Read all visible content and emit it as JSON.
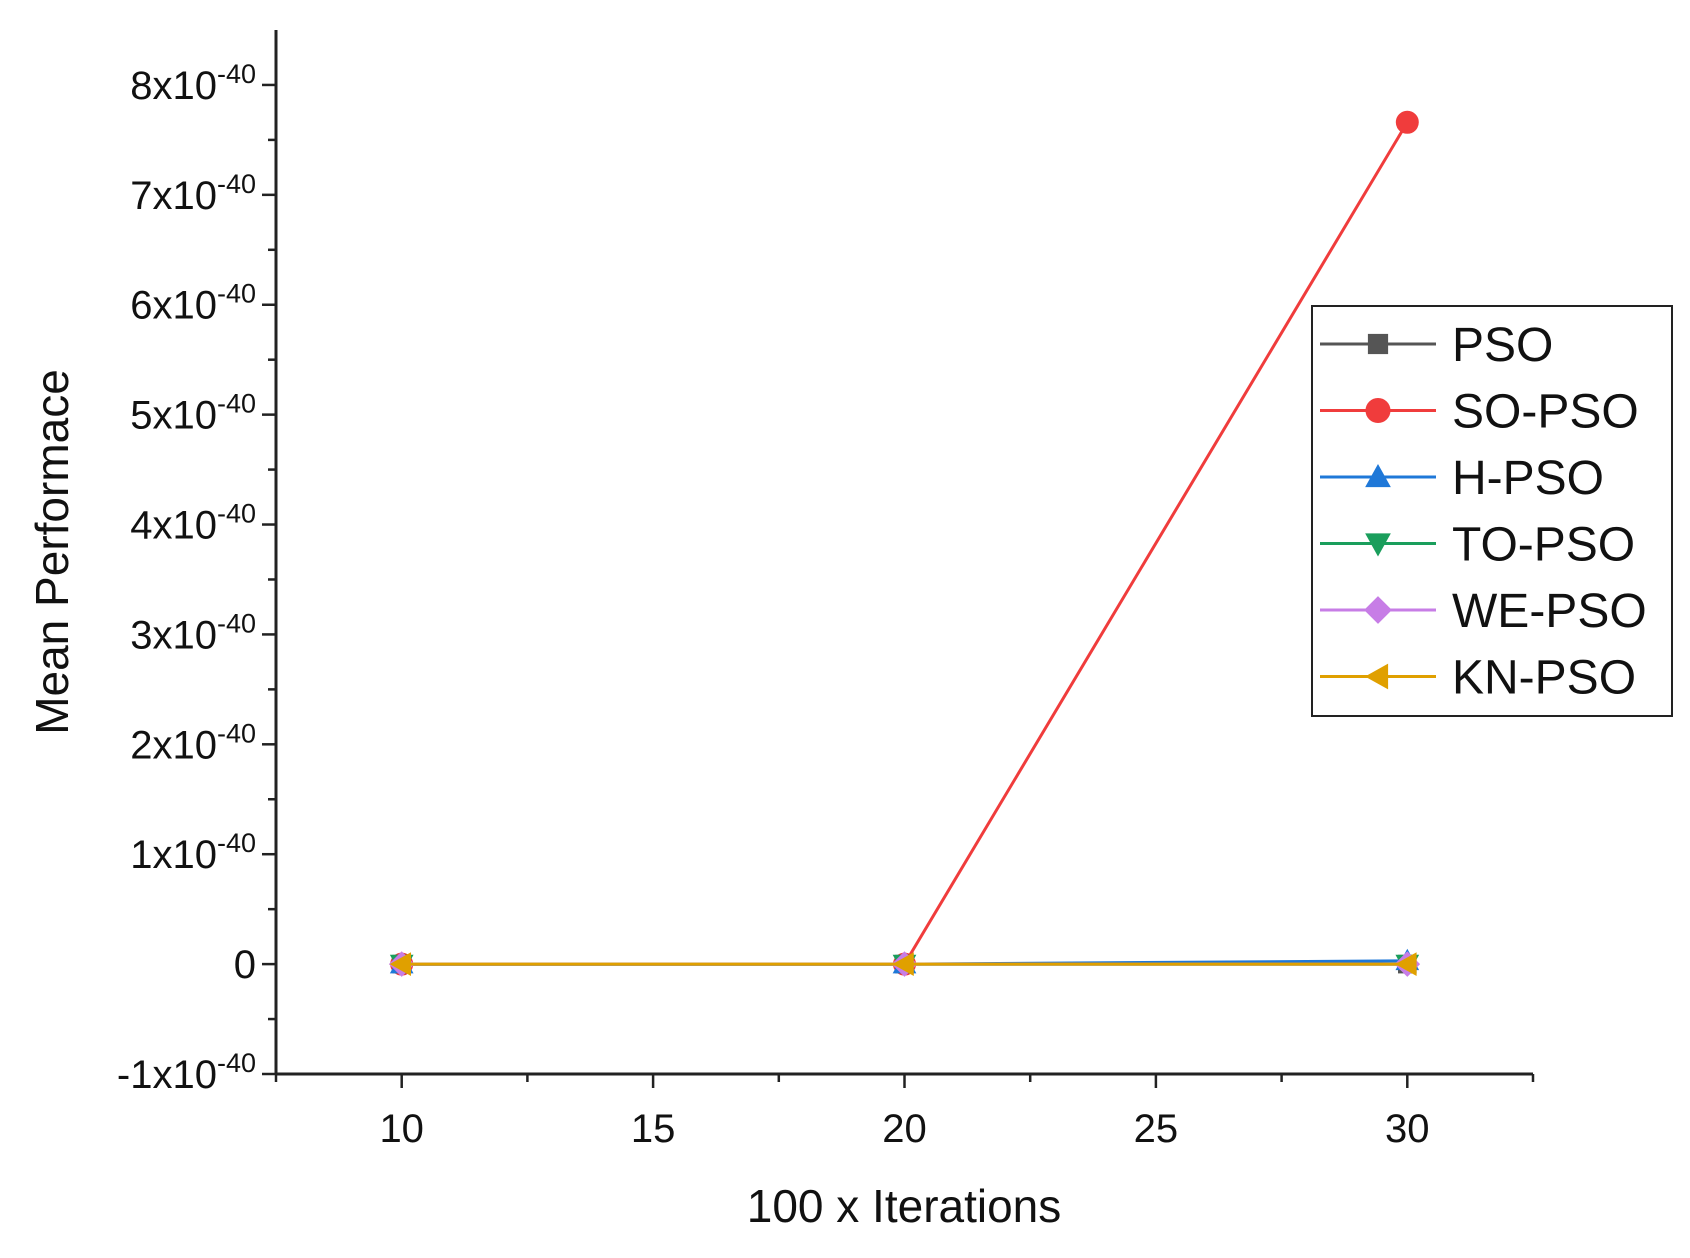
{
  "chart_data": {
    "type": "line",
    "title": "",
    "xlabel": "100 x Iterations",
    "ylabel": "Mean Performace",
    "xlim": [
      7.5,
      32.5
    ],
    "ylim": [
      -1e-40,
      8.5e-40
    ],
    "x": [
      10,
      20,
      30
    ],
    "xticks": [
      10,
      15,
      20,
      25,
      30
    ],
    "xtick_labels": [
      "10",
      "15",
      "20",
      "25",
      "30"
    ],
    "yticks": [
      {
        "value": -1e-40,
        "mantissa": "-1x10",
        "exp": "-40"
      },
      {
        "value": 0,
        "mantissa": "0",
        "exp": ""
      },
      {
        "value": 1e-40,
        "mantissa": "1x10",
        "exp": "-40"
      },
      {
        "value": 2e-40,
        "mantissa": "2x10",
        "exp": "-40"
      },
      {
        "value": 3e-40,
        "mantissa": "3x10",
        "exp": "-40"
      },
      {
        "value": 4e-40,
        "mantissa": "4x10",
        "exp": "-40"
      },
      {
        "value": 5e-40,
        "mantissa": "5x10",
        "exp": "-40"
      },
      {
        "value": 6e-40,
        "mantissa": "6x10",
        "exp": "-40"
      },
      {
        "value": 7e-40,
        "mantissa": "7x10",
        "exp": "-40"
      },
      {
        "value": 8e-40,
        "mantissa": "8x10",
        "exp": "-40"
      }
    ],
    "legend_position": "right",
    "grid": false,
    "series": [
      {
        "name": "PSO",
        "color": "#555555",
        "marker": "square",
        "values": [
          0,
          0,
          0
        ]
      },
      {
        "name": "SO-PSO",
        "color": "#f03c3c",
        "marker": "circle",
        "values": [
          0,
          0,
          7.66e-40
        ]
      },
      {
        "name": "H-PSO",
        "color": "#1f78d8",
        "marker": "triangle-up",
        "values": [
          0,
          0,
          3e-42
        ]
      },
      {
        "name": "TO-PSO",
        "color": "#1a9e5c",
        "marker": "triangle-down",
        "values": [
          0,
          0,
          0
        ]
      },
      {
        "name": "WE-PSO",
        "color": "#c77de6",
        "marker": "diamond",
        "values": [
          0,
          0,
          0
        ]
      },
      {
        "name": "KN-PSO",
        "color": "#e0a000",
        "marker": "triangle-left",
        "values": [
          0,
          0,
          0
        ]
      }
    ]
  }
}
